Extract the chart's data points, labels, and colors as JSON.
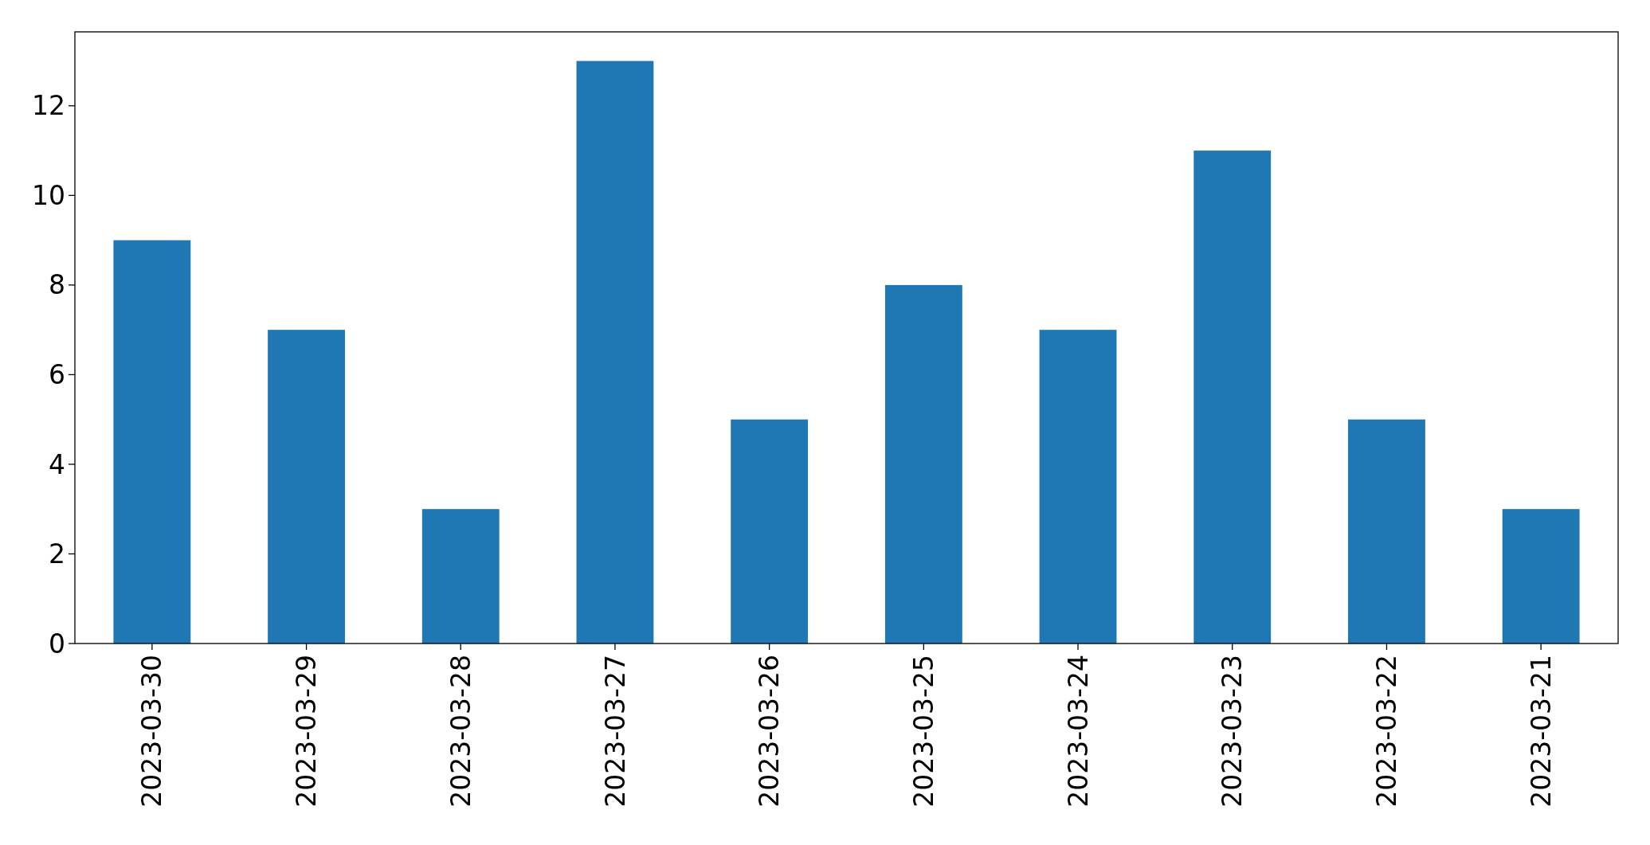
{
  "chart_data": {
    "type": "bar",
    "categories": [
      "2023-03-30",
      "2023-03-29",
      "2023-03-28",
      "2023-03-27",
      "2023-03-26",
      "2023-03-25",
      "2023-03-24",
      "2023-03-23",
      "2023-03-22",
      "2023-03-21"
    ],
    "values": [
      9,
      7,
      3,
      13,
      5,
      8,
      7,
      11,
      5,
      3
    ],
    "color": "#1f77b4",
    "ylim": [
      0,
      13.65
    ],
    "yticks": [
      0,
      2,
      4,
      6,
      8,
      10,
      12
    ],
    "grid": false
  }
}
